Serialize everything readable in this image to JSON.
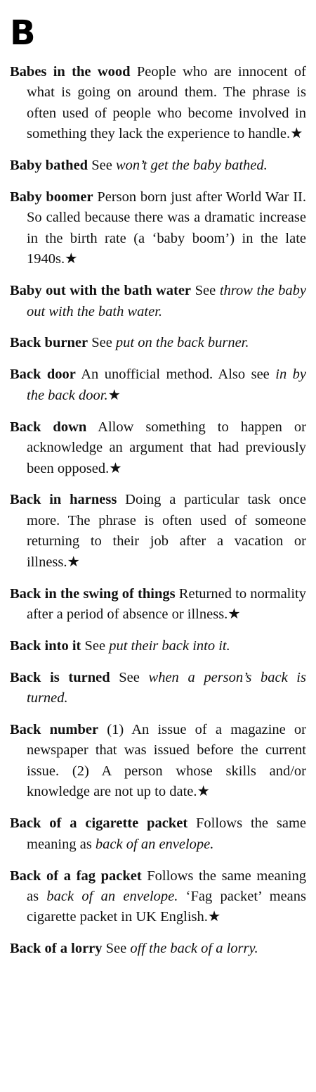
{
  "section_letter": "B",
  "entries": [
    {
      "term": "Babes in the wood",
      "def": " People who are innocent of what is going on around them. The phrase is often used of people who become involved in something they lack the experience to handle.★",
      "ref": "",
      "tail": ""
    },
    {
      "term": "Baby bathed",
      "def": " See ",
      "ref": "won’t get the baby bathed.",
      "tail": ""
    },
    {
      "term": "Baby boomer",
      "def": " Person born just after World War II. So called because there was a dramatic increase in the birth rate (a ‘baby boom’) in the late 1940s.★",
      "ref": "",
      "tail": ""
    },
    {
      "term": "Baby out with the bath water",
      "def": " See ",
      "ref": "throw the baby out with the bath water.",
      "tail": ""
    },
    {
      "term": "Back burner",
      "def": " See ",
      "ref": "put on the back burner.",
      "tail": ""
    },
    {
      "term": "Back door",
      "def": " An unofficial method. Also see ",
      "ref": "in by the back door.",
      "tail": "★"
    },
    {
      "term": "Back down",
      "def": " Allow something to happen or acknowledge an argument that had previously been opposed.★",
      "ref": "",
      "tail": ""
    },
    {
      "term": "Back in harness",
      "def": " Doing a particular task once more. The phrase is often used of someone returning to their job after a vacation or illness.★",
      "ref": "",
      "tail": ""
    },
    {
      "term": "Back in the swing of things",
      "def": " Returned to normality after a period of absence or illness.★",
      "ref": "",
      "tail": ""
    },
    {
      "term": "Back into it",
      "def": " See ",
      "ref": "put their back into it.",
      "tail": ""
    },
    {
      "term": "Back is turned",
      "def": " See ",
      "ref": "when a person’s back is turned.",
      "tail": ""
    },
    {
      "term": "Back number",
      "def": " (1) An issue of a magazine or newspaper that was issued before the current issue. (2) A person whose skills and/or knowledge are not up to date.★",
      "ref": "",
      "tail": ""
    },
    {
      "term": "Back of a cigarette packet",
      "def": " Follows the same meaning as ",
      "ref": "back of an envelope.",
      "tail": ""
    },
    {
      "term": "Back of a fag packet",
      "def": " Follows the same meaning as ",
      "ref": "back of an envelope.",
      "tail": " ‘Fag packet’ means cigarette packet in UK English.★"
    },
    {
      "term": "Back of a lorry",
      "def": " See ",
      "ref": "off the back of a lorry.",
      "tail": ""
    }
  ]
}
